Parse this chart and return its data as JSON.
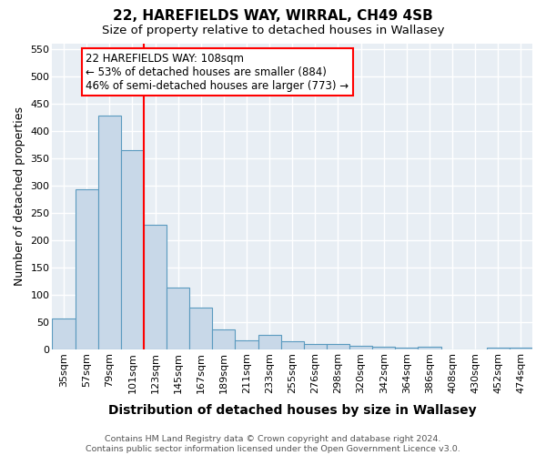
{
  "title": "22, HAREFIELDS WAY, WIRRAL, CH49 4SB",
  "subtitle": "Size of property relative to detached houses in Wallasey",
  "xlabel": "Distribution of detached houses by size in Wallasey",
  "ylabel": "Number of detached properties",
  "bar_color": "#c8d8e8",
  "bar_edge_color": "#5a9abf",
  "bar_edge_width": 0.8,
  "categories": [
    "35sqm",
    "57sqm",
    "79sqm",
    "101sqm",
    "123sqm",
    "145sqm",
    "167sqm",
    "189sqm",
    "211sqm",
    "233sqm",
    "255sqm",
    "276sqm",
    "298sqm",
    "320sqm",
    "342sqm",
    "364sqm",
    "386sqm",
    "408sqm",
    "430sqm",
    "452sqm",
    "474sqm"
  ],
  "values": [
    57,
    293,
    428,
    365,
    228,
    113,
    78,
    38,
    18,
    27,
    16,
    10,
    11,
    8,
    5,
    4,
    5,
    0,
    0,
    4,
    4
  ],
  "ylim": [
    0,
    560
  ],
  "yticks": [
    0,
    50,
    100,
    150,
    200,
    250,
    300,
    350,
    400,
    450,
    500,
    550
  ],
  "property_line_x": 3.5,
  "annotation_text": "22 HAREFIELDS WAY: 108sqm\n← 53% of detached houses are smaller (884)\n46% of semi-detached houses are larger (773) →",
  "annotation_box_color": "white",
  "annotation_box_edge_color": "red",
  "footer": "Contains HM Land Registry data © Crown copyright and database right 2024.\nContains public sector information licensed under the Open Government Licence v3.0.",
  "background_color": "white",
  "grid_color": "white",
  "fig_bg_color": "white",
  "title_fontsize": 11,
  "subtitle_fontsize": 9.5,
  "xlabel_fontsize": 10,
  "ylabel_fontsize": 9,
  "annotation_fontsize": 8.5,
  "tick_fontsize": 8,
  "footer_fontsize": 6.8
}
